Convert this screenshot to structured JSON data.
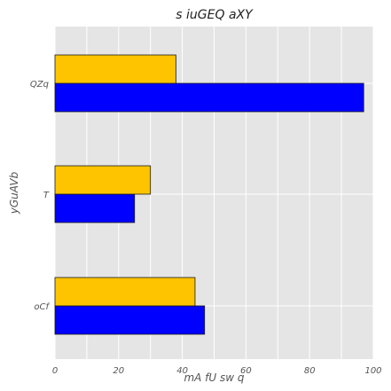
{
  "chart_data": {
    "type": "bar",
    "orientation": "horizontal",
    "title": "s iuGEQ aXY",
    "xlabel": "mA  fU sw  q",
    "ylabel": "yGuAVb",
    "categories": [
      "oCf",
      "T",
      "QZq"
    ],
    "series": [
      {
        "color": "#0000ff",
        "values": [
          47,
          25,
          97
        ]
      },
      {
        "color": "#ffc400",
        "values": [
          44,
          30,
          38
        ]
      }
    ],
    "xlim": [
      0,
      100
    ],
    "xticks": [
      0,
      20,
      40,
      60,
      80,
      100
    ],
    "grid": true,
    "background": "#e5e5e5"
  }
}
